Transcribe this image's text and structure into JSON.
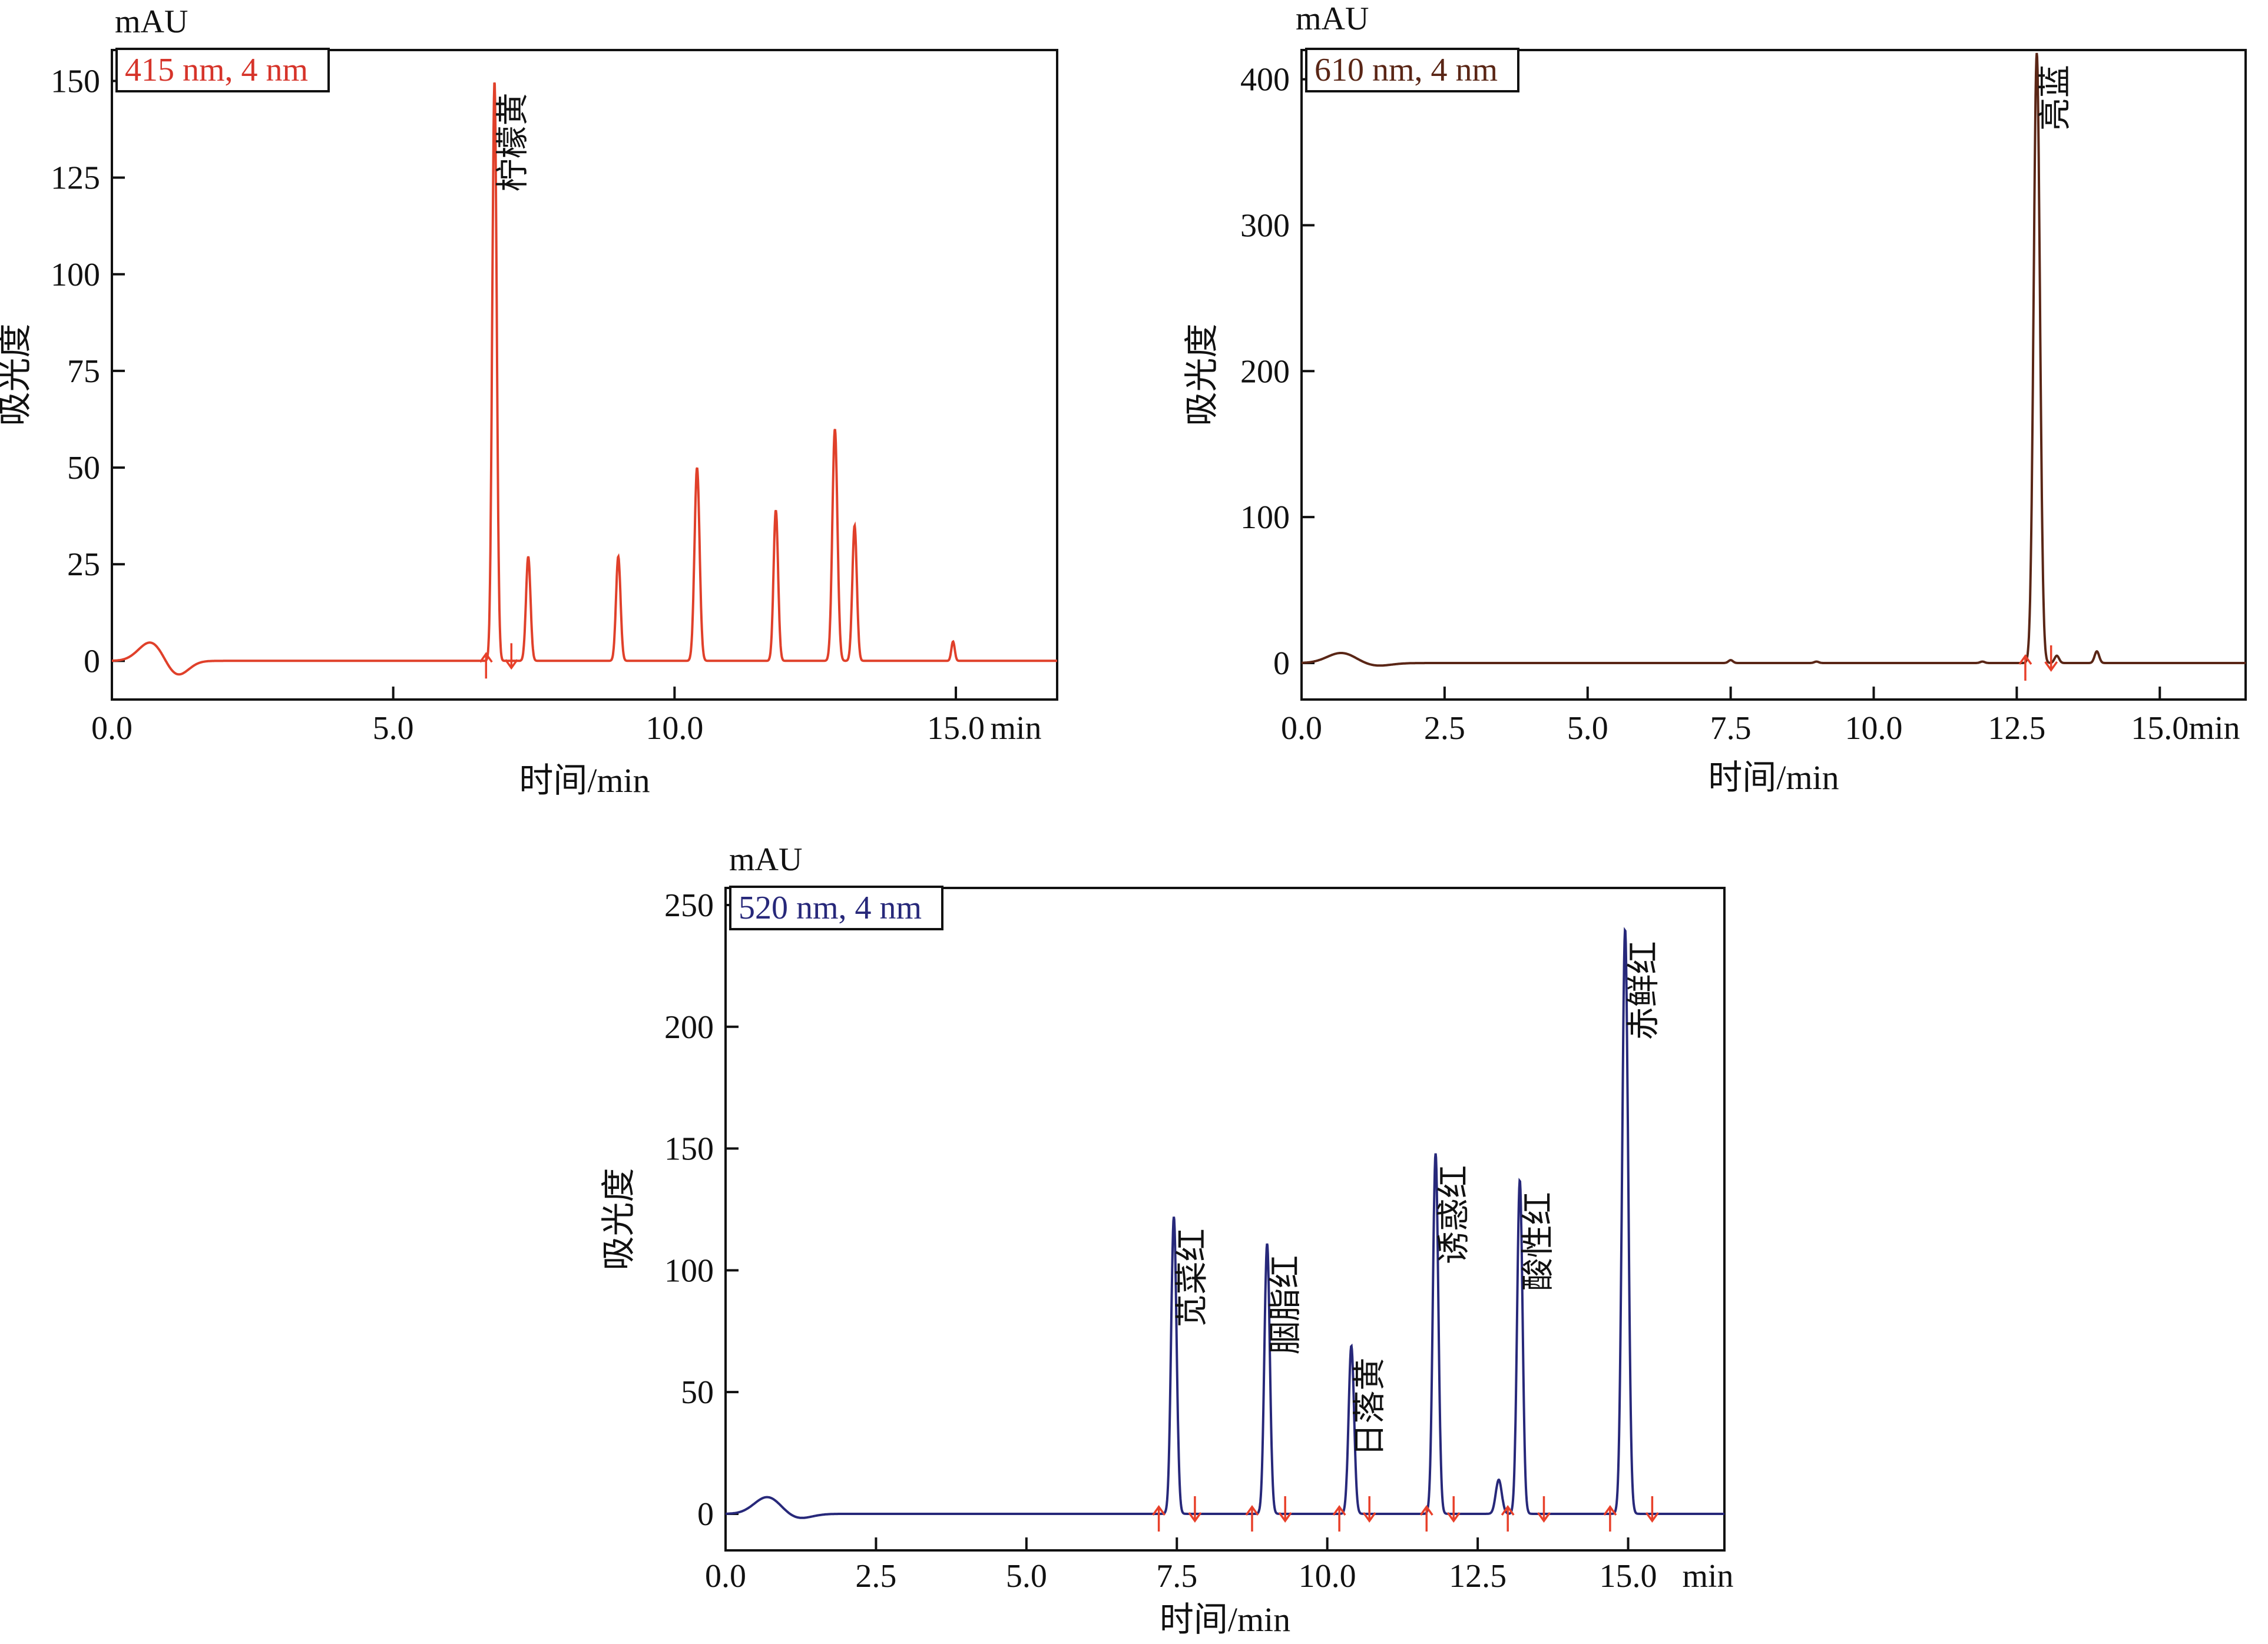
{
  "chart_data": [
    {
      "type": "line",
      "id": "top-left",
      "legend": "415 nm, 4 nm",
      "ylabel": "吸光度",
      "xlabel": "时间/min",
      "y_unit": "mAU",
      "x_unit": "min",
      "line_color": "#e0402a",
      "legend_color": "#d6342a",
      "xlim": [
        0,
        16.8
      ],
      "ylim": [
        -10,
        158
      ],
      "x_ticks": [
        "0.0",
        "5.0",
        "10.0",
        "15.0"
      ],
      "x_tick_values": [
        0,
        5,
        10,
        15
      ],
      "y_ticks": [
        "0",
        "25",
        "50",
        "75",
        "100",
        "125",
        "150"
      ],
      "y_tick_values": [
        0,
        25,
        50,
        75,
        100,
        125,
        150
      ],
      "peaks": [
        {
          "x": 0.7,
          "y": 5,
          "w": 0.22
        },
        {
          "x": 1.15,
          "y": -4,
          "w": 0.2
        },
        {
          "x": 6.8,
          "y": 150,
          "w": 0.04
        },
        {
          "x": 7.4,
          "y": 27,
          "w": 0.04
        },
        {
          "x": 9.0,
          "y": 27,
          "w": 0.04
        },
        {
          "x": 10.4,
          "y": 50,
          "w": 0.045
        },
        {
          "x": 11.8,
          "y": 39,
          "w": 0.04
        },
        {
          "x": 12.85,
          "y": 60,
          "w": 0.045
        },
        {
          "x": 13.2,
          "y": 35,
          "w": 0.04
        },
        {
          "x": 14.95,
          "y": 5,
          "w": 0.03
        }
      ],
      "peak_labels": [
        {
          "text": "柠檬黄",
          "x": 6.8,
          "y": 150
        }
      ],
      "markers": [
        {
          "x": 6.65,
          "dir": "up"
        },
        {
          "x": 7.1,
          "dir": "down"
        }
      ]
    },
    {
      "type": "line",
      "id": "top-right",
      "legend": "610 nm, 4 nm",
      "ylabel": "吸光度",
      "xlabel": "时间/min",
      "y_unit": "mAU",
      "x_unit": "min",
      "line_color": "#5a2616",
      "legend_color": "#5a2616",
      "xlim": [
        0,
        16.5
      ],
      "ylim": [
        -25,
        420
      ],
      "x_ticks": [
        "0.0",
        "2.5",
        "5.0",
        "7.5",
        "10.0",
        "12.5",
        "15.0"
      ],
      "x_tick_values": [
        0,
        2.5,
        5,
        7.5,
        10,
        12.5,
        15
      ],
      "y_ticks": [
        "0",
        "100",
        "200",
        "300",
        "400"
      ],
      "y_tick_values": [
        0,
        100,
        200,
        300,
        400
      ],
      "peaks": [
        {
          "x": 0.7,
          "y": 7,
          "w": 0.25
        },
        {
          "x": 1.3,
          "y": -2,
          "w": 0.25
        },
        {
          "x": 7.5,
          "y": 2,
          "w": 0.04
        },
        {
          "x": 9.0,
          "y": 1,
          "w": 0.04
        },
        {
          "x": 11.9,
          "y": 1,
          "w": 0.04
        },
        {
          "x": 12.85,
          "y": 418,
          "w": 0.055
        },
        {
          "x": 13.2,
          "y": 5,
          "w": 0.04
        },
        {
          "x": 13.9,
          "y": 8,
          "w": 0.04
        }
      ],
      "peak_labels": [
        {
          "text": "亮蓝",
          "x": 12.85,
          "y": 418
        }
      ],
      "markers": [
        {
          "x": 12.65,
          "dir": "up"
        },
        {
          "x": 13.1,
          "dir": "down"
        }
      ]
    },
    {
      "type": "line",
      "id": "bottom",
      "legend": "520 nm, 4 nm",
      "ylabel": "吸光度",
      "xlabel": "时间/min",
      "y_unit": "mAU",
      "x_unit": "min",
      "line_color": "#27287a",
      "legend_color": "#27287a",
      "xlim": [
        0,
        16.6
      ],
      "ylim": [
        -15,
        257
      ],
      "x_ticks": [
        "0.0",
        "2.5",
        "5.0",
        "7.5",
        "10.0",
        "12.5",
        "15.0"
      ],
      "x_tick_values": [
        0,
        2.5,
        5,
        7.5,
        10,
        12.5,
        15
      ],
      "y_ticks": [
        "0",
        "50",
        "100",
        "150",
        "200",
        "250"
      ],
      "y_tick_values": [
        0,
        50,
        100,
        150,
        200,
        250
      ],
      "peaks": [
        {
          "x": 0.7,
          "y": 7,
          "w": 0.22
        },
        {
          "x": 1.2,
          "y": -2,
          "w": 0.22
        },
        {
          "x": 7.45,
          "y": 122,
          "w": 0.045
        },
        {
          "x": 9.0,
          "y": 111,
          "w": 0.045
        },
        {
          "x": 10.4,
          "y": 69,
          "w": 0.045
        },
        {
          "x": 11.8,
          "y": 148,
          "w": 0.045
        },
        {
          "x": 12.85,
          "y": 14,
          "w": 0.05
        },
        {
          "x": 13.2,
          "y": 137,
          "w": 0.045
        },
        {
          "x": 14.95,
          "y": 240,
          "w": 0.05
        }
      ],
      "peak_labels": [
        {
          "text": "苋菜红",
          "x": 7.45,
          "y": 122
        },
        {
          "text": "胭脂红",
          "x": 9.0,
          "y": 111
        },
        {
          "text": "日落黄",
          "x": 10.4,
          "y": 69
        },
        {
          "text": "诱惑红",
          "x": 11.8,
          "y": 148
        },
        {
          "text": "酸性红",
          "x": 13.2,
          "y": 137
        },
        {
          "text": "赤鲜红",
          "x": 14.95,
          "y": 240
        }
      ],
      "markers": [
        {
          "x": 7.2,
          "dir": "up"
        },
        {
          "x": 7.8,
          "dir": "down"
        },
        {
          "x": 8.75,
          "dir": "up"
        },
        {
          "x": 9.3,
          "dir": "down"
        },
        {
          "x": 10.2,
          "dir": "up"
        },
        {
          "x": 10.7,
          "dir": "down"
        },
        {
          "x": 11.65,
          "dir": "up"
        },
        {
          "x": 12.1,
          "dir": "down"
        },
        {
          "x": 13.0,
          "dir": "up"
        },
        {
          "x": 13.6,
          "dir": "down"
        },
        {
          "x": 14.7,
          "dir": "up"
        },
        {
          "x": 15.4,
          "dir": "down"
        }
      ]
    }
  ]
}
